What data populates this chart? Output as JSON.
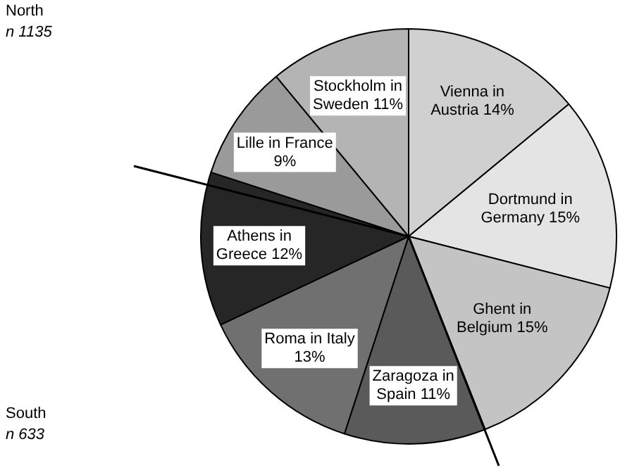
{
  "chart_data": {
    "type": "pie",
    "categories": [
      "Vienna  in Austria",
      "Dortmund in Germany",
      "Ghent in Belgium",
      "Zaragoza in Spain",
      "Roma in Italy",
      "Athens in Greece",
      "Lille in France",
      "Stockholm in Sweden"
    ],
    "values": [
      14,
      15,
      15,
      11,
      13,
      12,
      9,
      11
    ],
    "colors": [
      "#d0d0d0",
      "#e4e4e4",
      "#c4c4c4",
      "#5a5a5a",
      "#707070",
      "#262626",
      "#9a9a9a",
      "#b4b4b4"
    ],
    "value_labels": [
      "14%",
      "15%",
      "15%",
      "11%",
      "13%",
      "12%",
      "9%",
      "11%"
    ],
    "legend": false,
    "annotations": [
      "North",
      "n 1135",
      "South",
      "n 633"
    ]
  }
}
